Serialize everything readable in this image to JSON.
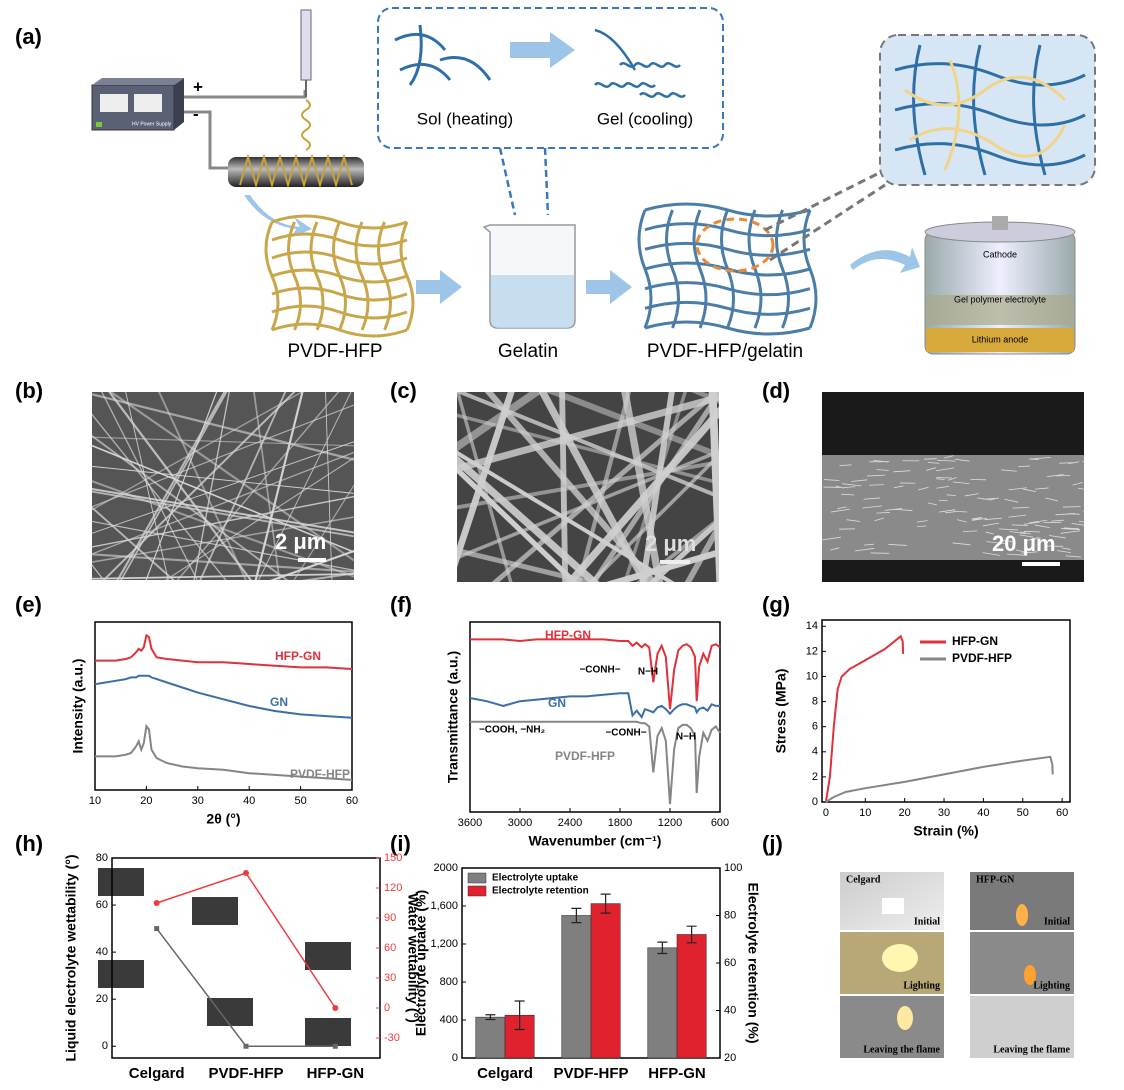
{
  "panel_labels": [
    "(a)",
    "(b)",
    "(c)",
    "(d)",
    "(e)",
    "(f)",
    "(g)",
    "(h)",
    "(i)",
    "(j)"
  ],
  "schematic": {
    "power_supply": "HV Power Supply",
    "plus": "+",
    "minus": "-",
    "sol": "Sol (heating)",
    "gel": "Gel (cooling)",
    "steps": [
      "PVDF-HFP",
      "Gelatin",
      "PVDF-HFP/gelatin"
    ],
    "battery": [
      "Cathode",
      "Gel polymer electrolyte",
      "Lithium anode"
    ]
  },
  "sem_scale_bars": [
    "2 μm",
    "2 μm",
    "20 μm"
  ],
  "photos": {
    "columns": [
      "Celgard",
      "HFP-GN"
    ],
    "captions": [
      [
        "Initial",
        "Initial"
      ],
      [
        "Lighting",
        "Lighting"
      ],
      [
        "Leaving the flame",
        "Leaving the flame"
      ]
    ]
  },
  "chart_data": [
    {
      "type": "line",
      "x_label": "2θ (°)",
      "y_label": "Intensity (a.u.)",
      "legend": "inline",
      "x": [
        10,
        12,
        14,
        16,
        17,
        18,
        18.5,
        19,
        19.5,
        20,
        20.5,
        21,
        22,
        24,
        27,
        30,
        35,
        40,
        45,
        50,
        55,
        60
      ],
      "xlim": [
        10,
        60
      ],
      "xticks": [
        10,
        20,
        30,
        40,
        50,
        60
      ],
      "ylim": [
        0,
        100
      ],
      "series": [
        {
          "name": "HFP-GN",
          "color": "#e0303a",
          "values": [
            77,
            77,
            77,
            78,
            79,
            82,
            84,
            83,
            85,
            92,
            91,
            84,
            79,
            78,
            77,
            76,
            76,
            75,
            74,
            73,
            73,
            72
          ]
        },
        {
          "name": "GN",
          "color": "#3a6ea5",
          "values": [
            63,
            64,
            65,
            66,
            67,
            67,
            68,
            68,
            68,
            68,
            68,
            67,
            66,
            64,
            61,
            58,
            54,
            50,
            47,
            45,
            44,
            43
          ]
        },
        {
          "name": "PVDF-HFP",
          "color": "#858585",
          "values": [
            20,
            20,
            20,
            21,
            22,
            26,
            29,
            24,
            28,
            38,
            36,
            24,
            19,
            16,
            14,
            13,
            12,
            10,
            9,
            8,
            7,
            6
          ]
        }
      ]
    },
    {
      "type": "line",
      "x_label": "Wavenumber (cm⁻¹)",
      "y_label": "Transmittance (a.u.)",
      "legend": "inline",
      "x": [
        3600,
        3400,
        3200,
        3000,
        2800,
        2600,
        2400,
        2200,
        2000,
        1800,
        1700,
        1650,
        1600,
        1540,
        1500,
        1450,
        1400,
        1350,
        1300,
        1250,
        1200,
        1150,
        1100,
        1050,
        1000,
        950,
        900,
        880,
        850,
        800,
        750,
        700,
        650,
        600
      ],
      "xlim": [
        3600,
        600
      ],
      "xticks": [
        3600,
        3000,
        2400,
        1800,
        1200,
        600
      ],
      "ylim": [
        -20,
        100
      ],
      "annotations": [
        "−CONH−",
        "N−H",
        "−COOH, −NH₂",
        "−CONH−",
        "N−H"
      ],
      "series": [
        {
          "name": "HFP-GN",
          "color": "#e0303a",
          "values": [
            89,
            89,
            89,
            88,
            89,
            89,
            89,
            89,
            89,
            88,
            88,
            85,
            87,
            84,
            86,
            84,
            62,
            80,
            85,
            78,
            45,
            70,
            82,
            85,
            86,
            84,
            78,
            50,
            72,
            80,
            75,
            85,
            86,
            84
          ]
        },
        {
          "name": "GN",
          "color": "#3a6ea5",
          "values": [
            52,
            50,
            47,
            50,
            51,
            52,
            53,
            53,
            54,
            55,
            55,
            41,
            44,
            40,
            45,
            44,
            43,
            46,
            47,
            45,
            42,
            45,
            47,
            48,
            48,
            47,
            46,
            43,
            45,
            46,
            44,
            48,
            47,
            47
          ]
        },
        {
          "name": "PVDF-HFP",
          "color": "#858585",
          "values": [
            37,
            37,
            37,
            37,
            37,
            37,
            37,
            37,
            37,
            37,
            37,
            37,
            37,
            36,
            36,
            34,
            5,
            28,
            33,
            25,
            -15,
            20,
            33,
            35,
            35,
            33,
            28,
            -8,
            15,
            30,
            25,
            32,
            34,
            30
          ]
        }
      ]
    },
    {
      "type": "line",
      "x_label": "Strain (%)",
      "y_label": "Stress (MPa)",
      "legend": "upper right",
      "xlim": [
        -1,
        62
      ],
      "xticks": [
        0,
        10,
        20,
        30,
        40,
        50,
        60
      ],
      "ylim": [
        0,
        14.5
      ],
      "yticks": [
        0,
        2,
        4,
        6,
        8,
        10,
        12,
        14
      ],
      "series": [
        {
          "name": "HFP-GN",
          "color": "#e0303a",
          "x": [
            0,
            1,
            2,
            3,
            4,
            6,
            10,
            15,
            19,
            19.5,
            19.6
          ],
          "values": [
            0,
            2,
            6,
            9,
            10,
            10.6,
            11.3,
            12.2,
            13.2,
            12.8,
            11.8
          ]
        },
        {
          "name": "PVDF-HFP",
          "color": "#858585",
          "x": [
            0,
            2,
            5,
            10,
            20,
            30,
            40,
            50,
            57,
            57.5,
            57.6
          ],
          "values": [
            0,
            0.4,
            0.8,
            1.1,
            1.6,
            2.2,
            2.8,
            3.3,
            3.6,
            3.0,
            2.2
          ]
        }
      ]
    },
    {
      "type": "dual-line",
      "y_label": "Liquid electrolyte wettability (°)",
      "y2_label": "Water wettability (°)",
      "categories": [
        "Celgard",
        "PVDF-HFP",
        "HFP-GN"
      ],
      "ylim": [
        -5,
        80
      ],
      "yticks": [
        0,
        20,
        40,
        60,
        80
      ],
      "y2lim": [
        -50,
        150
      ],
      "y2ticks": [
        -30,
        0,
        30,
        60,
        90,
        120,
        150
      ],
      "series": [
        {
          "color": "#666666",
          "values": [
            50,
            0,
            0
          ]
        },
        {
          "color": "#ef3b3b",
          "axis": "y2",
          "values": [
            105,
            135,
            0
          ]
        }
      ]
    },
    {
      "type": "bar",
      "y_label": "Electrolyte uptake (%)",
      "y2_label": "Electrolyte retention (%)",
      "legend": "upper left",
      "categories": [
        "Celgard",
        "PVDF-HFP",
        "HFP-GN"
      ],
      "ylim": [
        0,
        2000
      ],
      "yticks": [
        0,
        400,
        800,
        {
          "value": 1200,
          "label": "1,200"
        },
        {
          "value": 1600,
          "label": "1,600"
        },
        2000
      ],
      "y2lim": [
        20,
        100
      ],
      "y2ticks": [
        20,
        40,
        60,
        80,
        100
      ],
      "series": [
        {
          "name": "Electrolyte uptake",
          "color": "#7f7f7f",
          "values": [
            430,
            1500,
            1160
          ],
          "errors": [
            25,
            75,
            60
          ]
        },
        {
          "name": "Electrolyte retention",
          "color": "#e0222e",
          "axis": "y2",
          "values": [
            38,
            85,
            72
          ],
          "errors": [
            6,
            4,
            3.5
          ]
        }
      ]
    }
  ]
}
